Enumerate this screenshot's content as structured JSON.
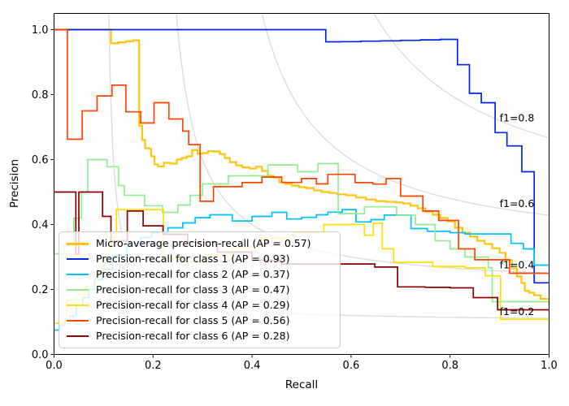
{
  "chart_data": {
    "type": "line",
    "title": "",
    "xlabel": "Recall",
    "ylabel": "Precision",
    "xlim": [
      0.0,
      1.0
    ],
    "ylim": [
      0.0,
      1.05
    ],
    "grid": false,
    "x_ticks": {
      "values": [
        0.0,
        0.2,
        0.4,
        0.6,
        0.8,
        1.0
      ],
      "labels": [
        "0.0",
        "0.2",
        "0.4",
        "0.6",
        "0.8",
        "1.0"
      ]
    },
    "y_ticks": {
      "values": [
        0.0,
        0.2,
        0.4,
        0.6,
        0.8,
        1.0
      ],
      "labels": [
        "0.0",
        "0.2",
        "0.4",
        "0.6",
        "0.8",
        "1.0"
      ]
    },
    "iso_f1": {
      "f_scores": [
        0.2,
        0.4,
        0.6,
        0.8
      ],
      "labels": [
        "f1=0.2",
        "f1=0.4",
        "f1=0.6",
        "f1=0.8"
      ],
      "label_x": 0.9,
      "color": "#dcdcdc"
    },
    "legend_position": "lower-left",
    "series": [
      {
        "name": "micro-average",
        "label": "Micro-average precision-recall (AP = 0.57)",
        "ap": 0.57,
        "color": "#ffc40c",
        "width": 2.2,
        "points": [
          [
            0,
            1.0
          ],
          [
            0.115,
            0.958
          ],
          [
            0.13,
            0.961
          ],
          [
            0.145,
            0.964
          ],
          [
            0.16,
            0.967
          ],
          [
            0.172,
            0.704
          ],
          [
            0.178,
            0.66
          ],
          [
            0.184,
            0.635
          ],
          [
            0.191,
            0.633
          ],
          [
            0.196,
            0.61
          ],
          [
            0.203,
            0.585
          ],
          [
            0.21,
            0.579
          ],
          [
            0.222,
            0.59
          ],
          [
            0.235,
            0.5875
          ],
          [
            0.248,
            0.6
          ],
          [
            0.258,
            0.605
          ],
          [
            0.268,
            0.61
          ],
          [
            0.279,
            0.629
          ],
          [
            0.29,
            0.618
          ],
          [
            0.3,
            0.62
          ],
          [
            0.311,
            0.626
          ],
          [
            0.322,
            0.625
          ],
          [
            0.335,
            0.617
          ],
          [
            0.345,
            0.605
          ],
          [
            0.355,
            0.592
          ],
          [
            0.368,
            0.582
          ],
          [
            0.38,
            0.576
          ],
          [
            0.395,
            0.572
          ],
          [
            0.408,
            0.578
          ],
          [
            0.42,
            0.565
          ],
          [
            0.432,
            0.55
          ],
          [
            0.443,
            0.545
          ],
          [
            0.455,
            0.53
          ],
          [
            0.467,
            0.525
          ],
          [
            0.48,
            0.52
          ],
          [
            0.495,
            0.515
          ],
          [
            0.51,
            0.512
          ],
          [
            0.525,
            0.505
          ],
          [
            0.54,
            0.5
          ],
          [
            0.557,
            0.497
          ],
          [
            0.572,
            0.493
          ],
          [
            0.59,
            0.49
          ],
          [
            0.61,
            0.483
          ],
          [
            0.63,
            0.477
          ],
          [
            0.65,
            0.472
          ],
          [
            0.67,
            0.47
          ],
          [
            0.69,
            0.468
          ],
          [
            0.705,
            0.465
          ],
          [
            0.72,
            0.458
          ],
          [
            0.735,
            0.45
          ],
          [
            0.75,
            0.44
          ],
          [
            0.765,
            0.43
          ],
          [
            0.78,
            0.42
          ],
          [
            0.795,
            0.41
          ],
          [
            0.81,
            0.39
          ],
          [
            0.825,
            0.375
          ],
          [
            0.84,
            0.363
          ],
          [
            0.855,
            0.35
          ],
          [
            0.87,
            0.34
          ],
          [
            0.885,
            0.327
          ],
          [
            0.9,
            0.313
          ],
          [
            0.912,
            0.29
          ],
          [
            0.925,
            0.265
          ],
          [
            0.935,
            0.24
          ],
          [
            0.944,
            0.22
          ],
          [
            0.951,
            0.196
          ],
          [
            0.96,
            0.19
          ],
          [
            0.97,
            0.182
          ],
          [
            0.983,
            0.171
          ],
          [
            1.0,
            0.168
          ]
        ]
      },
      {
        "name": "class-1",
        "label": "Precision-recall for class 1 (AP = 0.93)",
        "ap": 0.93,
        "color": "#0025e8",
        "width": 1.7,
        "points": [
          [
            0,
            1.0
          ],
          [
            0.549,
            0.9625
          ],
          [
            0.58,
            0.963
          ],
          [
            0.62,
            0.9645
          ],
          [
            0.66,
            0.9655
          ],
          [
            0.7,
            0.967
          ],
          [
            0.74,
            0.9685
          ],
          [
            0.78,
            0.97
          ],
          [
            0.815,
            0.892
          ],
          [
            0.839,
            0.804
          ],
          [
            0.863,
            0.775
          ],
          [
            0.891,
            0.683
          ],
          [
            0.915,
            0.642
          ],
          [
            0.945,
            0.5625
          ],
          [
            0.97,
            0.2206
          ],
          [
            1.0,
            0.2206
          ]
        ]
      },
      {
        "name": "class-2",
        "label": "Precision-recall for class 2 (AP = 0.37)",
        "ap": 0.37,
        "color": "#00bfff",
        "width": 1.7,
        "points": [
          [
            0,
            0.075
          ],
          [
            0.012,
            0.09
          ],
          [
            0.022,
            0.105
          ],
          [
            0.032,
            0.118
          ],
          [
            0.045,
            0.15
          ],
          [
            0.058,
            0.175
          ],
          [
            0.07,
            0.2
          ],
          [
            0.082,
            0.23
          ],
          [
            0.098,
            0.2625
          ],
          [
            0.118,
            0.304
          ],
          [
            0.147,
            0.342
          ],
          [
            0.175,
            0.36
          ],
          [
            0.197,
            0.375
          ],
          [
            0.23,
            0.39
          ],
          [
            0.26,
            0.405
          ],
          [
            0.285,
            0.421
          ],
          [
            0.315,
            0.43
          ],
          [
            0.36,
            0.411
          ],
          [
            0.4,
            0.425
          ],
          [
            0.44,
            0.4375
          ],
          [
            0.47,
            0.417
          ],
          [
            0.5,
            0.422
          ],
          [
            0.53,
            0.43
          ],
          [
            0.553,
            0.438
          ],
          [
            0.582,
            0.446
          ],
          [
            0.61,
            0.408
          ],
          [
            0.64,
            0.415
          ],
          [
            0.667,
            0.429
          ],
          [
            0.721,
            0.3875
          ],
          [
            0.754,
            0.379
          ],
          [
            0.8,
            0.375
          ],
          [
            0.83,
            0.371
          ],
          [
            0.923,
            0.342
          ],
          [
            0.948,
            0.325
          ],
          [
            0.97,
            0.275
          ],
          [
            1.0,
            0.275
          ]
        ]
      },
      {
        "name": "class-3",
        "label": "Precision-recall for class 3 (AP = 0.47)",
        "ap": 0.47,
        "color": "#90ee90",
        "width": 1.7,
        "points": [
          [
            0,
            0.31
          ],
          [
            0.02,
            0.335
          ],
          [
            0.04,
            0.42
          ],
          [
            0.055,
            0.5
          ],
          [
            0.068,
            0.6
          ],
          [
            0.107,
            0.578
          ],
          [
            0.13,
            0.52
          ],
          [
            0.142,
            0.49
          ],
          [
            0.183,
            0.458
          ],
          [
            0.219,
            0.4375
          ],
          [
            0.25,
            0.46
          ],
          [
            0.275,
            0.49
          ],
          [
            0.3,
            0.525
          ],
          [
            0.352,
            0.55
          ],
          [
            0.432,
            0.5835
          ],
          [
            0.492,
            0.5625
          ],
          [
            0.533,
            0.5875
          ],
          [
            0.574,
            0.4335
          ],
          [
            0.627,
            0.4545
          ],
          [
            0.692,
            0.4285
          ],
          [
            0.73,
            0.4
          ],
          [
            0.77,
            0.35
          ],
          [
            0.8,
            0.325
          ],
          [
            0.83,
            0.3
          ],
          [
            0.877,
            0.2665
          ],
          [
            0.885,
            0.1625
          ],
          [
            1.0,
            0.1545
          ]
        ]
      },
      {
        "name": "class-4",
        "label": "Precision-recall for class 4 (AP = 0.29)",
        "ap": 0.29,
        "color": "#ffdf00",
        "width": 1.7,
        "points": [
          [
            0,
            0.096
          ],
          [
            0.025,
            0.167
          ],
          [
            0.045,
            0.185
          ],
          [
            0.065,
            0.21
          ],
          [
            0.085,
            0.25
          ],
          [
            0.1,
            0.3
          ],
          [
            0.112,
            0.36
          ],
          [
            0.126,
            0.446
          ],
          [
            0.221,
            0.296
          ],
          [
            0.26,
            0.285
          ],
          [
            0.31,
            0.305
          ],
          [
            0.36,
            0.33
          ],
          [
            0.42,
            0.357
          ],
          [
            0.48,
            0.375
          ],
          [
            0.545,
            0.4
          ],
          [
            0.627,
            0.367
          ],
          [
            0.645,
            0.404
          ],
          [
            0.663,
            0.325
          ],
          [
            0.686,
            0.2835
          ],
          [
            0.765,
            0.271
          ],
          [
            0.83,
            0.2665
          ],
          [
            0.871,
            0.242
          ],
          [
            0.902,
            0.108
          ],
          [
            1.0,
            0.104
          ]
        ]
      },
      {
        "name": "class-5",
        "label": "Precision-recall for class 5 (AP = 0.56)",
        "ap": 0.56,
        "color": "#ff4500",
        "width": 1.7,
        "points": [
          [
            0,
            1.0
          ],
          [
            0.027,
            0.6625
          ],
          [
            0.057,
            0.75
          ],
          [
            0.087,
            0.796
          ],
          [
            0.117,
            0.829
          ],
          [
            0.145,
            0.747
          ],
          [
            0.175,
            0.7125
          ],
          [
            0.202,
            0.775
          ],
          [
            0.232,
            0.725
          ],
          [
            0.26,
            0.6875
          ],
          [
            0.272,
            0.646
          ],
          [
            0.295,
            0.4715
          ],
          [
            0.322,
            0.5165
          ],
          [
            0.38,
            0.529
          ],
          [
            0.42,
            0.546
          ],
          [
            0.46,
            0.5295
          ],
          [
            0.5,
            0.5415
          ],
          [
            0.53,
            0.525
          ],
          [
            0.553,
            0.5545
          ],
          [
            0.608,
            0.529
          ],
          [
            0.644,
            0.5245
          ],
          [
            0.671,
            0.5415
          ],
          [
            0.7,
            0.4875
          ],
          [
            0.745,
            0.4415
          ],
          [
            0.777,
            0.4125
          ],
          [
            0.817,
            0.325
          ],
          [
            0.85,
            0.2915
          ],
          [
            0.92,
            0.25
          ],
          [
            1.0,
            0.25
          ]
        ]
      },
      {
        "name": "class-6",
        "label": "Precision-recall for class 6 (AP = 0.28)",
        "ap": 0.28,
        "color": "#8b0000",
        "width": 1.7,
        "points": [
          [
            0,
            0.5
          ],
          [
            0.044,
            0.31
          ],
          [
            0.05,
            0.5
          ],
          [
            0.098,
            0.425
          ],
          [
            0.115,
            0.35
          ],
          [
            0.148,
            0.4415
          ],
          [
            0.18,
            0.396
          ],
          [
            0.22,
            0.37
          ],
          [
            0.27,
            0.345
          ],
          [
            0.33,
            0.315
          ],
          [
            0.4,
            0.29
          ],
          [
            0.46,
            0.2785
          ],
          [
            0.648,
            0.269
          ],
          [
            0.694,
            0.208
          ],
          [
            0.75,
            0.2065
          ],
          [
            0.8,
            0.205
          ],
          [
            0.847,
            0.175
          ],
          [
            0.896,
            0.1375
          ],
          [
            1.0,
            0.1375
          ]
        ]
      }
    ]
  }
}
